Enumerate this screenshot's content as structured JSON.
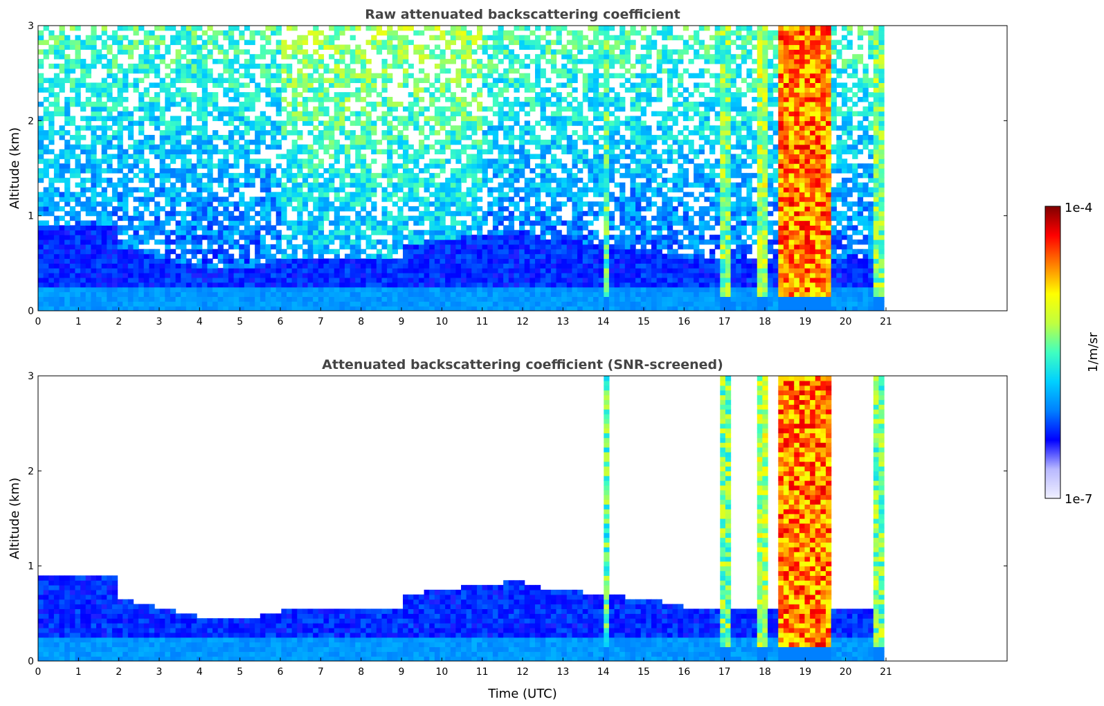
{
  "chart_data": [
    {
      "type": "heatmap",
      "title": "Raw attenuated backscattering coefficient",
      "xlabel": "",
      "ylabel": "Altitude (km)",
      "xlim": [
        0,
        24
      ],
      "ylim": [
        0,
        3
      ],
      "xticks": [
        "0",
        "1",
        "2",
        "3",
        "4",
        "5",
        "6",
        "7",
        "8",
        "9",
        "10",
        "11",
        "12",
        "13",
        "14",
        "15",
        "16",
        "17",
        "18",
        "19",
        "20",
        "21"
      ],
      "yticks": [
        "0",
        "1",
        "2",
        "3"
      ],
      "data_extent_hours": [
        0,
        20.95
      ],
      "screened": false
    },
    {
      "type": "heatmap",
      "title": "Attenuated backscattering coefficient (SNR-screened)",
      "xlabel": "Time (UTC)",
      "ylabel": "Altitude (km)",
      "xlim": [
        0,
        24
      ],
      "ylim": [
        0,
        3
      ],
      "xticks": [
        "0",
        "1",
        "2",
        "3",
        "4",
        "5",
        "6",
        "7",
        "8",
        "9",
        "10",
        "11",
        "12",
        "13",
        "14",
        "15",
        "16",
        "17",
        "18",
        "19",
        "20",
        "21"
      ],
      "yticks": [
        "0",
        "1",
        "2",
        "3"
      ],
      "data_extent_hours": [
        0,
        20.95
      ],
      "screened": true
    }
  ],
  "colorbar": {
    "label": "1/m/sr",
    "min_label": "1e-7",
    "max_label": "1e-4",
    "scale": "log",
    "colormap": "jet",
    "colors": [
      "#f0f0ff",
      "#b8b8ff",
      "#0000ff",
      "#0080ff",
      "#00d0ff",
      "#40ffc0",
      "#c0ff40",
      "#ffff00",
      "#ff8000",
      "#ff0000",
      "#800000"
    ]
  }
}
